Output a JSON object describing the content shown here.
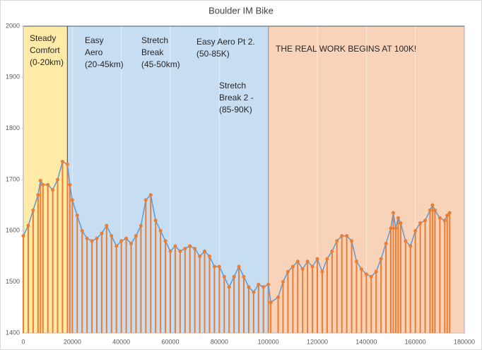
{
  "chart_data": {
    "type": "line",
    "title": "Boulder IM Bike",
    "x": [
      0,
      2000,
      4000,
      6000,
      7000,
      8000,
      10000,
      12000,
      14000,
      16000,
      18000,
      19000,
      20000,
      22000,
      24000,
      26000,
      28000,
      30000,
      32000,
      34000,
      36000,
      38000,
      40000,
      42000,
      44000,
      46000,
      48000,
      50000,
      52000,
      54000,
      56000,
      58000,
      60000,
      62000,
      64000,
      66000,
      68000,
      70000,
      72000,
      74000,
      76000,
      78000,
      80000,
      82000,
      84000,
      86000,
      88000,
      90000,
      92000,
      94000,
      96000,
      98000,
      100000,
      101000,
      104000,
      106000,
      108000,
      110000,
      112000,
      114000,
      116000,
      118000,
      120000,
      122000,
      124000,
      126000,
      128000,
      130000,
      132000,
      134000,
      136000,
      138000,
      140000,
      142000,
      144000,
      146000,
      148000,
      150000,
      151000,
      152000,
      153000,
      154000,
      156000,
      158000,
      160000,
      162000,
      164000,
      166000,
      167000,
      168000,
      170000,
      172000,
      173000,
      174000
    ],
    "series": [
      {
        "color": "#5b9bd5",
        "marker_color": "#ed7d31",
        "values": [
          1590,
          1610,
          1640,
          1670,
          1698,
          1690,
          1690,
          1680,
          1700,
          1735,
          1730,
          1690,
          1660,
          1630,
          1600,
          1585,
          1580,
          1585,
          1595,
          1610,
          1590,
          1570,
          1580,
          1585,
          1575,
          1590,
          1610,
          1660,
          1670,
          1620,
          1600,
          1580,
          1560,
          1570,
          1560,
          1565,
          1570,
          1565,
          1550,
          1560,
          1550,
          1530,
          1530,
          1510,
          1490,
          1510,
          1530,
          1510,
          1490,
          1480,
          1495,
          1490,
          1495,
          1460,
          1470,
          1500,
          1520,
          1530,
          1540,
          1525,
          1540,
          1530,
          1545,
          1520,
          1545,
          1560,
          1580,
          1590,
          1590,
          1580,
          1540,
          1525,
          1515,
          1510,
          1520,
          1545,
          1575,
          1605,
          1635,
          1605,
          1625,
          1615,
          1580,
          1570,
          1600,
          1615,
          1620,
          1640,
          1650,
          1640,
          1625,
          1620,
          1630,
          1635
        ]
      }
    ],
    "regions": [
      {
        "x": [
          0,
          18000
        ],
        "color": "#ffe699",
        "label": [
          "Steady",
          "Comfort",
          "(0-20km)"
        ]
      },
      {
        "x": [
          18000,
          100000
        ],
        "color": "#bdd7ee",
        "label": [
          "Easy",
          "Aero",
          "(20-45km)"
        ]
      },
      {
        "x": [
          100000,
          180000
        ],
        "color": "#f8cbad",
        "label": [
          "THE REAL WORK BEGINS AT 100K!"
        ]
      }
    ],
    "annotations": [
      [
        "Stretch",
        "Break",
        "(45-50km)"
      ],
      [
        "Easy Aero Pt 2.",
        "(50-85K)"
      ],
      [
        "Stretch",
        "Break 2 -",
        "(85-90K)"
      ]
    ],
    "xlim": [
      0,
      180000
    ],
    "xticks": [
      0,
      20000,
      40000,
      60000,
      80000,
      100000,
      120000,
      140000,
      160000,
      180000
    ],
    "ylim": [
      1400,
      2000
    ],
    "yticks": [
      1400,
      1500,
      1600,
      1700,
      1800,
      1900,
      2000
    ],
    "grid": false
  }
}
